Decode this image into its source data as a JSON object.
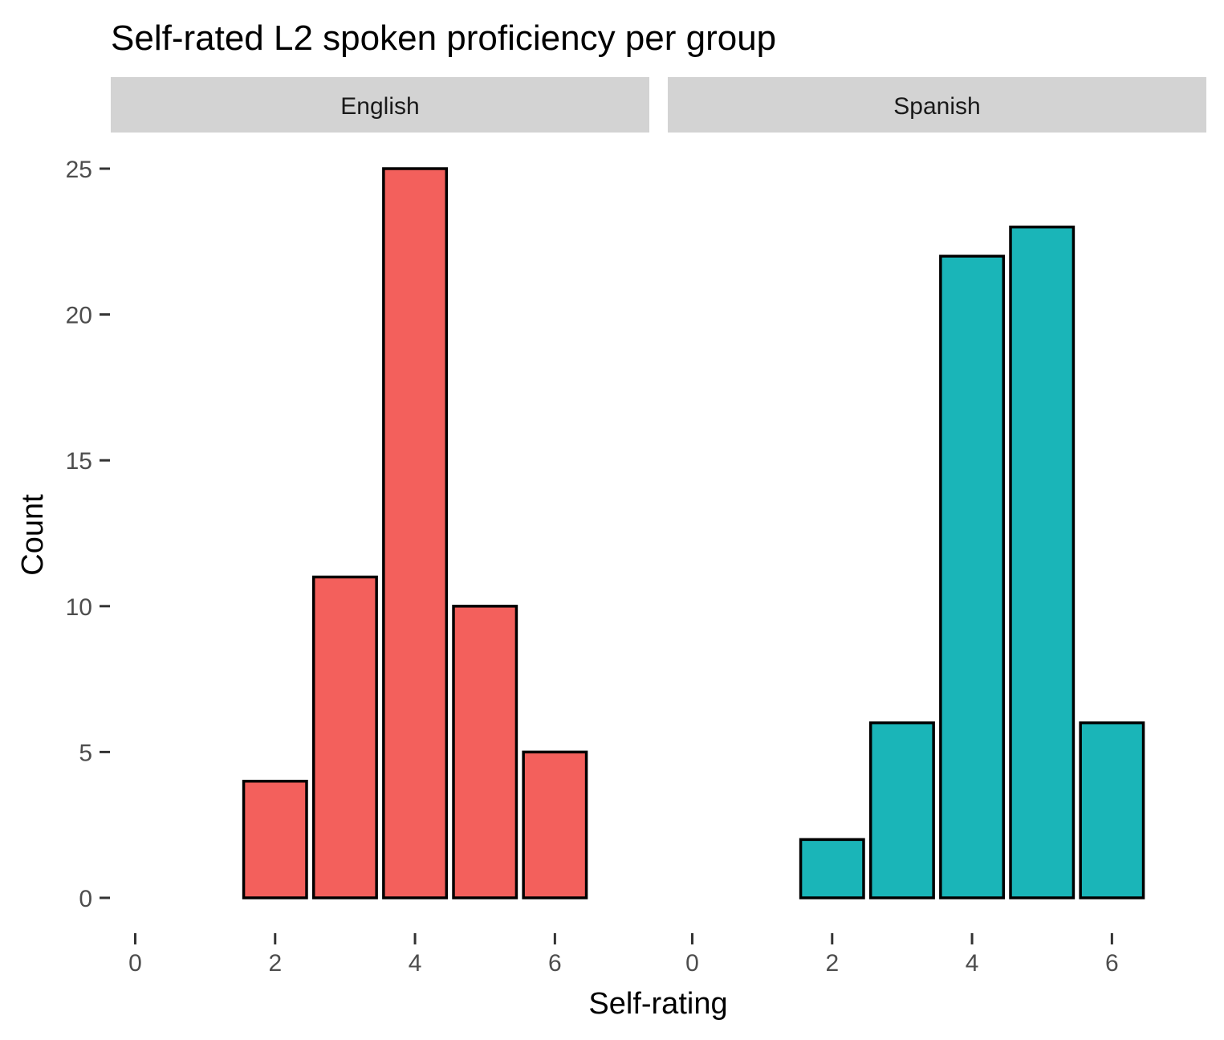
{
  "chart_data": {
    "type": "bar",
    "title": "Self-rated L2 spoken proficiency per group",
    "xlabel": "Self-rating",
    "ylabel": "Count",
    "xlim": [
      0,
      7
    ],
    "ylim": [
      0,
      25
    ],
    "x_ticks": [
      0,
      2,
      4,
      6
    ],
    "y_ticks": [
      0,
      5,
      10,
      15,
      20,
      25
    ],
    "grid": false,
    "bar_outline_color": "#000000",
    "strip_color": "#d3d3d3",
    "panels": [
      {
        "name": "English",
        "color": "#f3605c",
        "x": [
          2,
          3,
          4,
          5,
          6
        ],
        "values": [
          4,
          11,
          25,
          10,
          5
        ]
      },
      {
        "name": "Spanish",
        "color": "#1ab5b8",
        "x": [
          2,
          3,
          4,
          5,
          6
        ],
        "values": [
          2,
          6,
          22,
          23,
          6
        ]
      }
    ]
  }
}
